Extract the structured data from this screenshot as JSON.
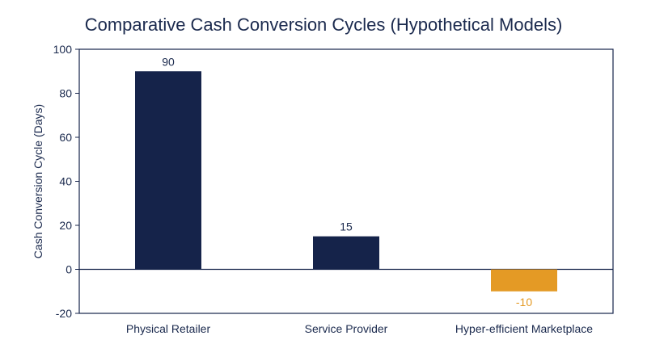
{
  "chart_data": {
    "type": "bar",
    "title": "Comparative Cash Conversion Cycles (Hypothetical Models)",
    "xlabel": "",
    "ylabel": "Cash Conversion Cycle (Days)",
    "ylim": [
      -20,
      100
    ],
    "yticks": [
      -20,
      0,
      20,
      40,
      60,
      80,
      100
    ],
    "categories": [
      "Physical Retailer",
      "Service Provider",
      "Hyper-efficient Marketplace"
    ],
    "values": [
      90,
      15,
      -10
    ],
    "value_labels": [
      "90",
      "15",
      "-10"
    ],
    "bar_colors": [
      "#15234a",
      "#15234a",
      "#e49a25"
    ],
    "label_colors": [
      "#1b2a4e",
      "#1b2a4e",
      "#e49a25"
    ],
    "grid": false,
    "legend": "none"
  }
}
